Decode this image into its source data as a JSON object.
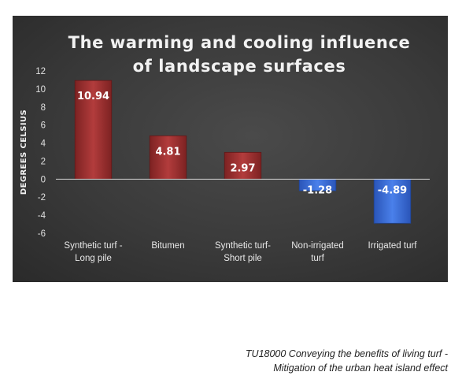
{
  "chart_data": {
    "type": "bar",
    "title_lines": [
      "The warming and cooling influence",
      "of landscape surfaces"
    ],
    "ylabel": "DEGREES CELSIUS",
    "ylim": [
      -6,
      12
    ],
    "yticks": [
      12,
      10,
      8,
      6,
      4,
      2,
      0,
      -2,
      -4,
      -6
    ],
    "categories": [
      [
        "Synthetic turf -",
        "Long pile"
      ],
      [
        "Bitumen"
      ],
      [
        "Synthetic turf-",
        "Short pile"
      ],
      [
        "Non-irrigated",
        "turf"
      ],
      [
        "Irrigated turf"
      ]
    ],
    "values": [
      10.94,
      4.81,
      2.97,
      -1.28,
      -4.89
    ],
    "value_labels": [
      "10.94",
      "4.81",
      "2.97",
      "-1.28",
      "-4.89"
    ],
    "colors": {
      "positive": "#a43535",
      "negative": "#3f72d9"
    },
    "grid": false,
    "legend": "none"
  },
  "caption": {
    "line1": "TU18000 Conveying the benefits of living turf -",
    "line2": "Mitigation of the urban heat island effect"
  }
}
